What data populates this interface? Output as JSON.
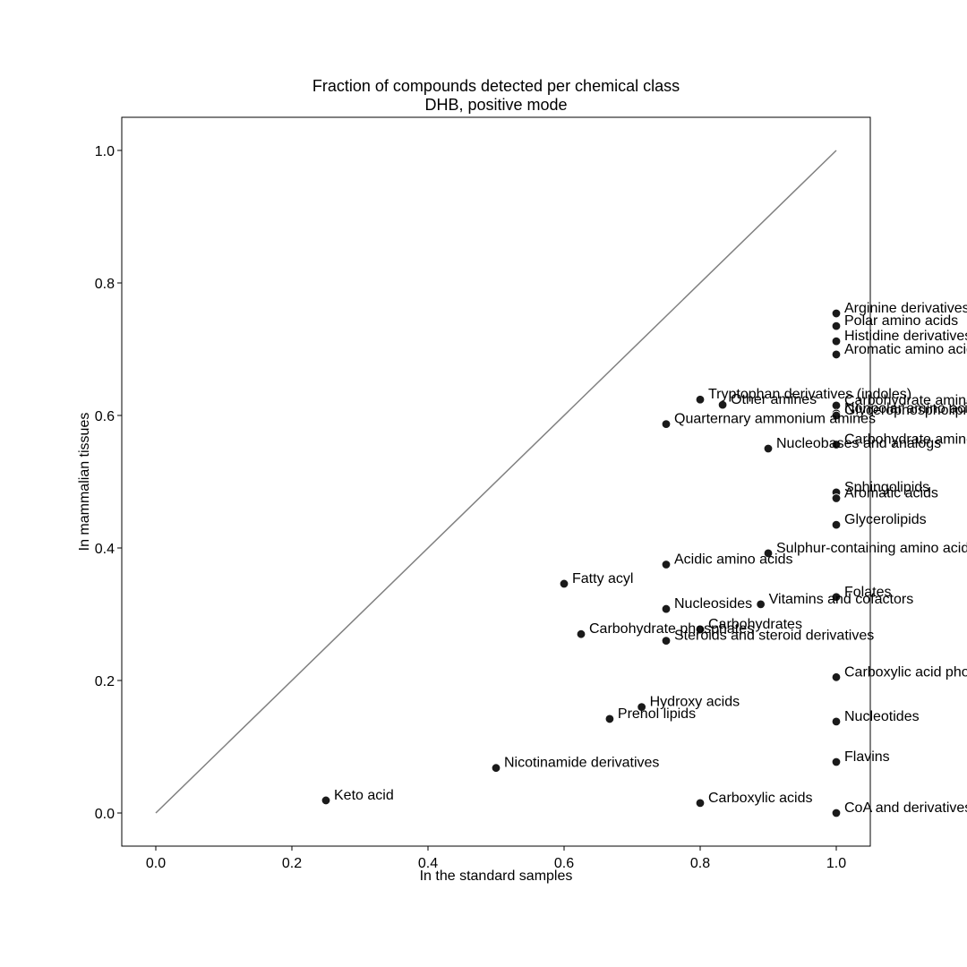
{
  "chart_data": {
    "type": "scatter",
    "title": "Fraction of compounds detected per chemical class",
    "subtitle": "DHB, positive mode",
    "xlabel": "In the standard samples",
    "ylabel": "In mammalian tissues",
    "xlim": [
      -0.05,
      1.05
    ],
    "ylim": [
      -0.05,
      1.05
    ],
    "xticks": [
      "0.0",
      "0.2",
      "0.4",
      "0.6",
      "0.8",
      "1.0"
    ],
    "yticks": [
      "0.0",
      "0.2",
      "0.4",
      "0.6",
      "0.8",
      "1.0"
    ],
    "grid": false,
    "reference_line": {
      "x": [
        0,
        1
      ],
      "y": [
        0,
        1
      ],
      "color": "#808080"
    },
    "marker_color": "#1a1a1a",
    "points": [
      {
        "label": "Arginine derivatives",
        "x": 1.0,
        "y": 0.754
      },
      {
        "label": "Polar amino acids",
        "x": 1.0,
        "y": 0.735
      },
      {
        "label": "Histidine derivatives",
        "x": 1.0,
        "y": 0.712
      },
      {
        "label": "Aromatic amino acids",
        "x": 1.0,
        "y": 0.692
      },
      {
        "label": "Tryptophan derivatives (indoles)",
        "x": 0.8,
        "y": 0.624
      },
      {
        "label": "Other amines",
        "x": 0.833,
        "y": 0.616
      },
      {
        "label": "Carbohydrate amines",
        "x": 1.0,
        "y": 0.615
      },
      {
        "label": "Nonpolar amino acids",
        "x": 1.0,
        "y": 0.603
      },
      {
        "label": "Glycerophospholipids",
        "x": 1.0,
        "y": 0.6
      },
      {
        "label": "Quarternary ammonium amines",
        "x": 0.75,
        "y": 0.587
      },
      {
        "label": "Carbohydrate amino acids",
        "x": 1.0,
        "y": 0.556
      },
      {
        "label": "Nucleobases and analogs",
        "x": 0.9,
        "y": 0.55
      },
      {
        "label": "Sphingolipids",
        "x": 1.0,
        "y": 0.484
      },
      {
        "label": "Aromatic acids",
        "x": 1.0,
        "y": 0.475
      },
      {
        "label": "Glycerolipids",
        "x": 1.0,
        "y": 0.435
      },
      {
        "label": "Sulphur-containing amino acids",
        "x": 0.9,
        "y": 0.392
      },
      {
        "label": "Acidic amino acids",
        "x": 0.75,
        "y": 0.375
      },
      {
        "label": "Fatty acyl",
        "x": 0.6,
        "y": 0.346
      },
      {
        "label": "Folates",
        "x": 1.0,
        "y": 0.326
      },
      {
        "label": "Vitamins and cofactors",
        "x": 0.889,
        "y": 0.315
      },
      {
        "label": "Nucleosides",
        "x": 0.75,
        "y": 0.308
      },
      {
        "label": "Carbohydrates",
        "x": 0.8,
        "y": 0.277
      },
      {
        "label": "Carbohydrate phosphates",
        "x": 0.625,
        "y": 0.27
      },
      {
        "label": "Steroids and steroid derivatives",
        "x": 0.75,
        "y": 0.26
      },
      {
        "label": "Carboxylic acid phosphates",
        "x": 1.0,
        "y": 0.205
      },
      {
        "label": "Hydroxy acids",
        "x": 0.714,
        "y": 0.16
      },
      {
        "label": "Prenol lipids",
        "x": 0.667,
        "y": 0.142
      },
      {
        "label": "Nucleotides",
        "x": 1.0,
        "y": 0.138
      },
      {
        "label": "Flavins",
        "x": 1.0,
        "y": 0.077
      },
      {
        "label": "Nicotinamide derivatives",
        "x": 0.5,
        "y": 0.068
      },
      {
        "label": "Keto acid",
        "x": 0.25,
        "y": 0.019
      },
      {
        "label": "Carboxylic acids",
        "x": 0.8,
        "y": 0.015
      },
      {
        "label": "CoA and derivatives",
        "x": 1.0,
        "y": 0.0
      }
    ]
  }
}
